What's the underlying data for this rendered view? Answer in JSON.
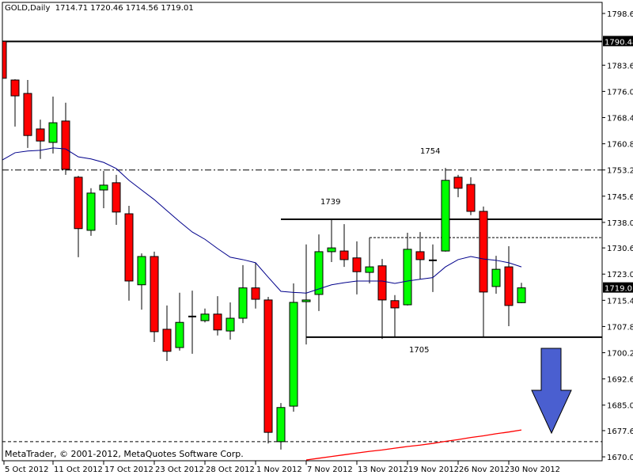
{
  "header": {
    "symbol_period": "GOLD,Daily",
    "ohlc": "1714.71 1720.46 1714.56 1719.01"
  },
  "copyright": "MetaTrader, © 2001-2012, MetaQuotes Software Corp.",
  "colors": {
    "bull": "#00ff00",
    "bear": "#ff0000",
    "ma_fast": "#00008b",
    "ma_slow": "#ff0000",
    "arrow": "#4a5fd0",
    "frame": "#000000"
  },
  "annotations": {
    "resistance_high": "1754",
    "resistance_mid": "1739",
    "support": "1705"
  },
  "arrow": {
    "icon": "down-arrow-icon",
    "direction": "down"
  },
  "chart_data": {
    "type": "candlestick",
    "title": "GOLD,Daily",
    "ylim": [
      1670.0,
      1798.6
    ],
    "y_ticks": [
      "1798.60",
      "1783.60",
      "1776.00",
      "1768.40",
      "1760.80",
      "1753.20",
      "1745.60",
      "1738.00",
      "1730.60",
      "1723.00",
      "1715.40",
      "1707.80",
      "1700.20",
      "1692.60",
      "1685.00",
      "1677.60",
      "1670.00"
    ],
    "price_labels": [
      {
        "text": "1790.48",
        "value": 1790.48
      },
      {
        "text": "1719.01",
        "value": 1719.01
      }
    ],
    "x_ticks": [
      {
        "label": "5 Oct 2012",
        "index": 0
      },
      {
        "label": "11 Oct 2012",
        "index": 4
      },
      {
        "label": "17 Oct 2012",
        "index": 8
      },
      {
        "label": "23 Oct 2012",
        "index": 12
      },
      {
        "label": "28 Oct 2012",
        "index": 16
      },
      {
        "label": "1 Nov 2012",
        "index": 20
      },
      {
        "label": "7 Nov 2012",
        "index": 24
      },
      {
        "label": "13 Nov 2012",
        "index": 28
      },
      {
        "label": "19 Nov 2012",
        "index": 32
      },
      {
        "label": "26 Nov 2012",
        "index": 36
      },
      {
        "label": "30 Nov 2012",
        "index": 40
      }
    ],
    "candles": [
      [
        1790.5,
        1795.6,
        1774.3,
        1779.8
      ],
      [
        1779.3,
        1779.5,
        1765.8,
        1774.7
      ],
      [
        1775.4,
        1779.3,
        1759.6,
        1763.2
      ],
      [
        1765.1,
        1767.8,
        1756.4,
        1761.6
      ],
      [
        1761.2,
        1774.5,
        1758.0,
        1766.9
      ],
      [
        1767.4,
        1772.7,
        1751.8,
        1753.4
      ],
      [
        1751.1,
        1751.5,
        1727.9,
        1736.2
      ],
      [
        1735.7,
        1747.9,
        1734.1,
        1746.5
      ],
      [
        1747.4,
        1752.9,
        1742.1,
        1748.8
      ],
      [
        1749.5,
        1751.8,
        1737.3,
        1741.0
      ],
      [
        1740.5,
        1742.8,
        1715.3,
        1721.0
      ],
      [
        1719.9,
        1729.0,
        1712.7,
        1728.1
      ],
      [
        1728.1,
        1729.5,
        1703.3,
        1706.3
      ],
      [
        1707.0,
        1713.9,
        1697.8,
        1700.6
      ],
      [
        1701.7,
        1717.6,
        1700.8,
        1709.0
      ],
      [
        1710.7,
        1718.2,
        1699.9,
        1710.7
      ],
      [
        1709.5,
        1713.0,
        1709.0,
        1711.4
      ],
      [
        1711.4,
        1716.6,
        1705.2,
        1706.8
      ],
      [
        1706.5,
        1714.8,
        1704.0,
        1710.2
      ],
      [
        1710.2,
        1725.6,
        1708.8,
        1719.0
      ],
      [
        1719.0,
        1726.3,
        1713.0,
        1715.7
      ],
      [
        1715.5,
        1716.4,
        1673.9,
        1677.1
      ],
      [
        1674.4,
        1685.6,
        1672.1,
        1684.3
      ],
      [
        1684.7,
        1720.3,
        1683.1,
        1714.8
      ],
      [
        1715.0,
        1731.6,
        1702.6,
        1715.5
      ],
      [
        1717.1,
        1734.5,
        1712.3,
        1729.5
      ],
      [
        1729.5,
        1738.7,
        1726.5,
        1730.6
      ],
      [
        1729.7,
        1737.5,
        1725.1,
        1727.2
      ],
      [
        1727.7,
        1732.5,
        1717.1,
        1723.7
      ],
      [
        1723.5,
        1733.6,
        1720.3,
        1725.1
      ],
      [
        1725.4,
        1727.4,
        1704.2,
        1715.5
      ],
      [
        1715.3,
        1716.9,
        1704.7,
        1713.2
      ],
      [
        1714.1,
        1735.0,
        1713.9,
        1730.2
      ],
      [
        1729.5,
        1735.2,
        1721.5,
        1727.2
      ],
      [
        1727.0,
        1731.6,
        1717.8,
        1727.0
      ],
      [
        1729.7,
        1753.8,
        1729.5,
        1750.2
      ],
      [
        1751.1,
        1751.8,
        1745.3,
        1747.9
      ],
      [
        1749.0,
        1751.1,
        1740.1,
        1741.2
      ],
      [
        1741.2,
        1742.6,
        1704.9,
        1717.8
      ],
      [
        1719.4,
        1728.3,
        1717.3,
        1724.4
      ],
      [
        1725.1,
        1731.1,
        1707.9,
        1713.9
      ],
      [
        1714.71,
        1720.46,
        1714.56,
        1719.01
      ]
    ],
    "ma_fast": [
      1756.1,
      1758.2,
      1758.7,
      1758.9,
      1759.6,
      1759.3,
      1757.0,
      1756.4,
      1755.4,
      1753.6,
      1750.2,
      1747.4,
      1744.6,
      1741.4,
      1738.2,
      1735.2,
      1733.1,
      1730.4,
      1727.9,
      1727.2,
      1726.3,
      1722.1,
      1718.0,
      1717.7,
      1717.5,
      1718.7,
      1719.9,
      1720.5,
      1721.0,
      1721.0,
      1721.0,
      1720.3,
      1721.0,
      1721.5,
      1722.0,
      1725.1,
      1727.2,
      1728.1,
      1727.4,
      1727.0,
      1726.3,
      1725.1
    ],
    "ma_slow": {
      "start_index": 24,
      "values": [
        1669.1,
        1669.6,
        1670.1,
        1670.6,
        1671.1,
        1671.6,
        1672.0,
        1672.5,
        1673.0,
        1673.4,
        1673.9,
        1674.5,
        1675.0,
        1675.6,
        1676.1,
        1676.7,
        1677.2,
        1677.8
      ]
    },
    "levels": [
      {
        "value": 1790.48,
        "style": "solid",
        "from_index": 0
      },
      {
        "value": 1753.2,
        "style": "dashdot",
        "from_index": 0
      },
      {
        "value": 1738.9,
        "style": "solid",
        "from_index": 22
      },
      {
        "value": 1733.6,
        "style": "dotted",
        "from_index": 29
      },
      {
        "value": 1704.7,
        "style": "solid",
        "from_index": 24
      },
      {
        "value": 1674.4,
        "style": "dashed",
        "from_index": 0
      }
    ]
  }
}
